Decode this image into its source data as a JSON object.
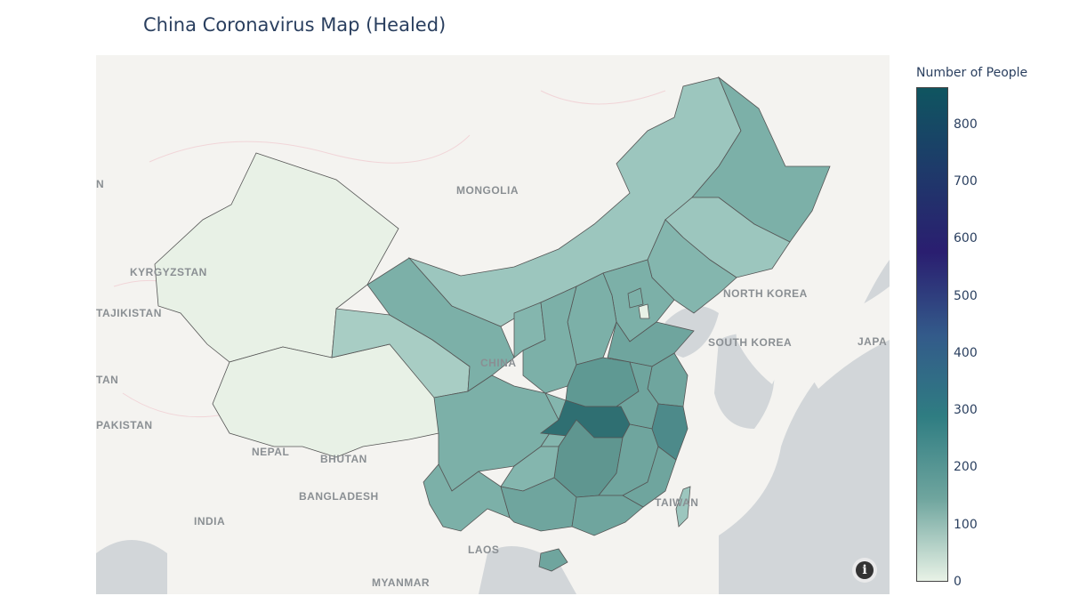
{
  "title": "China Coronavirus Map (Healed)",
  "colorbar": {
    "title": "Number of People",
    "ticks": [
      "0",
      "100",
      "200",
      "300",
      "400",
      "500",
      "600",
      "700",
      "800"
    ],
    "range": [
      0,
      865
    ],
    "colors": [
      "#e8f2e6",
      "#6fa59e",
      "#2f7d82",
      "#335a8a",
      "#2a1e70",
      "#1e3a6a",
      "#0f5560"
    ]
  },
  "place_labels": {
    "mongolia": "MONGOLIA",
    "kyrgyzstan": "KYRGYZSTAN",
    "tajikistan": "TAJIKISTAN",
    "pakistan": "PAKISTAN",
    "nepal": "NEPAL",
    "bhutan": "BHUTAN",
    "bangladesh": "BANGLADESH",
    "india": "INDIA",
    "laos": "LAOS",
    "myanmar": "MYANMAR",
    "north_korea": "NORTH KOREA",
    "south_korea": "SOUTH KOREA",
    "japan": "JAPA",
    "taiwan": "TAIWAN",
    "china": "CHINA",
    "edge_n": "N",
    "edge_tan": "TAN"
  },
  "info_icon": "info-icon"
}
